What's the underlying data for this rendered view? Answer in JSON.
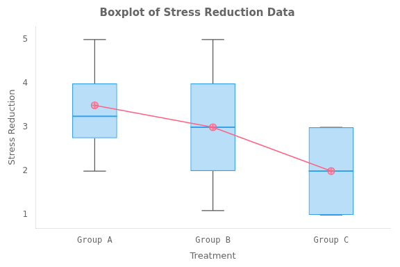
{
  "chart_data": {
    "type": "box",
    "title": "Boxplot of Stress Reduction Data",
    "xlabel": "Treatment",
    "ylabel": "Stress Reduction",
    "categories": [
      "Group A",
      "Group B",
      "Group C"
    ],
    "q1": [
      2.75,
      2.0,
      1.0
    ],
    "median": [
      3.25,
      3.0,
      2.0
    ],
    "q3": [
      4.0,
      4.0,
      3.0
    ],
    "whislo": [
      2.0,
      1.1,
      1.0
    ],
    "whishi": [
      5.0,
      5.0,
      3.0
    ],
    "means": [
      3.5,
      3.0,
      2.0
    ],
    "ylim": [
      0.7,
      5.3
    ],
    "yticks": [
      1,
      2,
      3,
      4,
      5
    ],
    "grid": false
  }
}
